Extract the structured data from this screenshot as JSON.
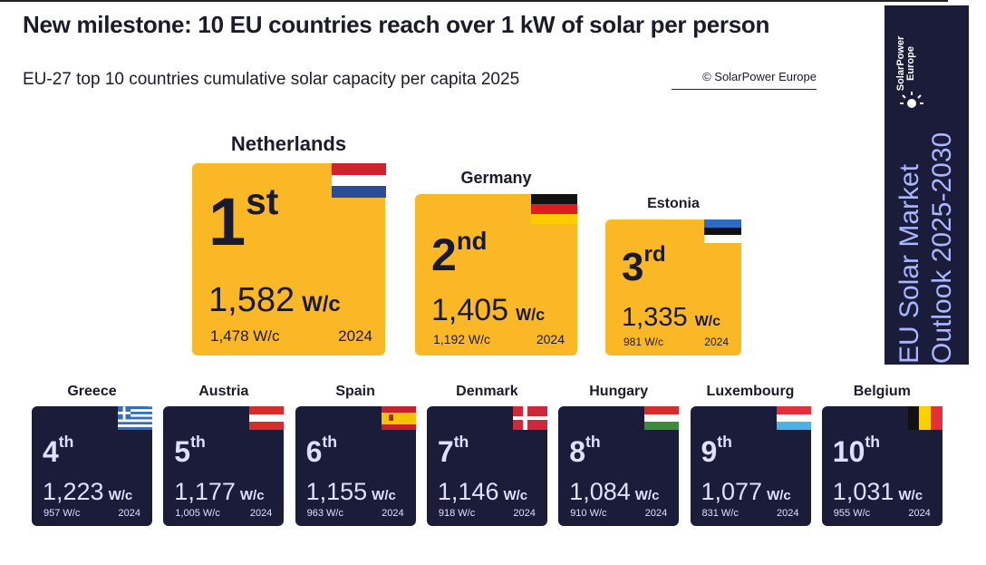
{
  "title": "New milestone: 10 EU countries reach over 1 kW of solar per person",
  "subtitle": "EU-27 top 10 countries cumulative solar capacity per capita 2025",
  "credit": "© SolarPower Europe",
  "banner": {
    "logo_line1": "SolarPower",
    "logo_line2": "Europe",
    "line1": "EU Solar Market",
    "line2": "Outlook 2025-2030"
  },
  "colors": {
    "gold": "#fbb826",
    "navy": "#1b1b3a",
    "banner_text": "#aab6ff"
  },
  "chart_data": {
    "type": "table",
    "unit": "W/c",
    "year_label": "2024",
    "countries": [
      {
        "name": "Netherlands",
        "rank_num": "1",
        "rank_suffix": "st",
        "value": "1,582",
        "unit": "W/c",
        "prev_value": "1,478 W/c",
        "prev_year": "2024",
        "flag": "netherlands-flag-icon"
      },
      {
        "name": "Germany",
        "rank_num": "2",
        "rank_suffix": "nd",
        "value": "1,405",
        "unit": "W/c",
        "prev_value": "1,192 W/c",
        "prev_year": "2024",
        "flag": "germany-flag-icon"
      },
      {
        "name": "Estonia",
        "rank_num": "3",
        "rank_suffix": "rd",
        "value": "1,335",
        "unit": "W/c",
        "prev_value": "981 W/c",
        "prev_year": "2024",
        "flag": "estonia-flag-icon"
      },
      {
        "name": "Greece",
        "rank_num": "4",
        "rank_suffix": "th",
        "value": "1,223",
        "unit": "W/c",
        "prev_value": "957 W/c",
        "prev_year": "2024",
        "flag": "greece-flag-icon"
      },
      {
        "name": "Austria",
        "rank_num": "5",
        "rank_suffix": "th",
        "value": "1,177",
        "unit": "W/c",
        "prev_value": "1,005 W/c",
        "prev_year": "2024",
        "flag": "austria-flag-icon"
      },
      {
        "name": "Spain",
        "rank_num": "6",
        "rank_suffix": "th",
        "value": "1,155",
        "unit": "W/c",
        "prev_value": "963 W/c",
        "prev_year": "2024",
        "flag": "spain-flag-icon"
      },
      {
        "name": "Denmark",
        "rank_num": "7",
        "rank_suffix": "th",
        "value": "1,146",
        "unit": "W/c",
        "prev_value": "918 W/c",
        "prev_year": "2024",
        "flag": "denmark-flag-icon"
      },
      {
        "name": "Hungary",
        "rank_num": "8",
        "rank_suffix": "th",
        "value": "1,084",
        "unit": "W/c",
        "prev_value": "910 W/c",
        "prev_year": "2024",
        "flag": "hungary-flag-icon"
      },
      {
        "name": "Luxembourg",
        "rank_num": "9",
        "rank_suffix": "th",
        "value": "1,077",
        "unit": "W/c",
        "prev_value": "831 W/c",
        "prev_year": "2024",
        "flag": "luxembourg-flag-icon"
      },
      {
        "name": "Belgium",
        "rank_num": "10",
        "rank_suffix": "th",
        "value": "1,031",
        "unit": "W/c",
        "prev_value": "955 W/c",
        "prev_year": "2024",
        "flag": "belgium-flag-icon"
      }
    ]
  }
}
